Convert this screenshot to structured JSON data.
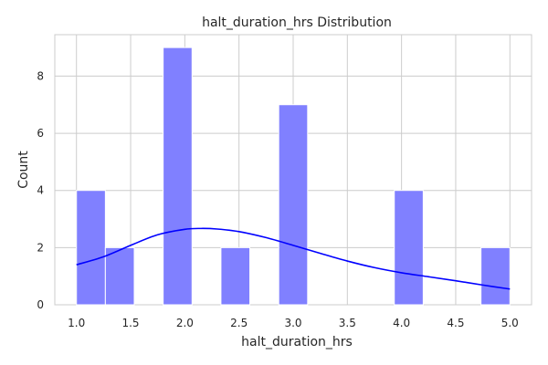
{
  "chart_data": {
    "type": "bar",
    "title": "halt_duration_hrs Distribution",
    "xlabel": "halt_duration_hrs",
    "ylabel": "Count",
    "xlim": [
      0.8,
      5.2
    ],
    "ylim": [
      0,
      9.45
    ],
    "x_ticks": [
      "1.0",
      "1.5",
      "2.0",
      "2.5",
      "3.0",
      "3.5",
      "4.0",
      "4.5",
      "5.0"
    ],
    "y_ticks": [
      "0",
      "2",
      "4",
      "6",
      "8"
    ],
    "grid": true,
    "bins": [
      {
        "x0": 1.0,
        "x1": 1.2667,
        "count": 4
      },
      {
        "x0": 1.2667,
        "x1": 1.5333,
        "count": 2
      },
      {
        "x0": 1.5333,
        "x1": 1.8,
        "count": 0
      },
      {
        "x0": 1.8,
        "x1": 2.0667,
        "count": 9
      },
      {
        "x0": 2.0667,
        "x1": 2.3333,
        "count": 0
      },
      {
        "x0": 2.3333,
        "x1": 2.6,
        "count": 2
      },
      {
        "x0": 2.6,
        "x1": 2.8667,
        "count": 0
      },
      {
        "x0": 2.8667,
        "x1": 3.1333,
        "count": 7
      },
      {
        "x0": 3.1333,
        "x1": 3.4,
        "count": 0
      },
      {
        "x0": 3.4,
        "x1": 3.6667,
        "count": 0
      },
      {
        "x0": 3.6667,
        "x1": 3.9333,
        "count": 0
      },
      {
        "x0": 3.9333,
        "x1": 4.2,
        "count": 4
      },
      {
        "x0": 4.2,
        "x1": 4.4667,
        "count": 0
      },
      {
        "x0": 4.4667,
        "x1": 4.7333,
        "count": 0
      },
      {
        "x0": 4.7333,
        "x1": 5.0,
        "count": 2
      }
    ],
    "kde": {
      "x": [
        1.0,
        1.25,
        1.5,
        1.75,
        2.0,
        2.15,
        2.3,
        2.5,
        2.75,
        3.0,
        3.25,
        3.5,
        3.75,
        4.0,
        4.25,
        4.5,
        4.75,
        5.0
      ],
      "y": [
        1.4,
        1.68,
        2.08,
        2.45,
        2.64,
        2.67,
        2.65,
        2.56,
        2.35,
        2.08,
        1.8,
        1.53,
        1.3,
        1.12,
        0.98,
        0.84,
        0.69,
        0.55
      ]
    },
    "colors": {
      "bar": "#8080ff",
      "kde": "#0000ff",
      "grid": "#cccccc",
      "text": "#262626"
    }
  }
}
